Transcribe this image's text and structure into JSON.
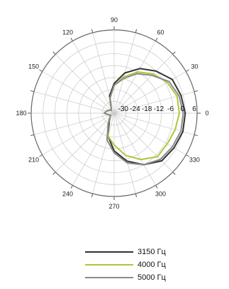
{
  "chart_data": {
    "type": "polar-line",
    "angle_labels": [
      "0",
      "30",
      "60",
      "90",
      "120",
      "150",
      "180",
      "210",
      "240",
      "270",
      "300",
      "330"
    ],
    "angle_values": [
      0,
      30,
      60,
      90,
      120,
      150,
      180,
      210,
      240,
      270,
      300,
      330
    ],
    "radial_labels": [
      "-30",
      "-24",
      "-18",
      "-12",
      "-6",
      "0",
      "6"
    ],
    "radial_values": [
      -30,
      -24,
      -18,
      -12,
      -6,
      0,
      6
    ],
    "rlim": [
      -36,
      6
    ],
    "legend_position": "bottom",
    "series": [
      {
        "name": "3150 Гц",
        "color": "#333333",
        "theta": [
          0,
          15,
          30,
          45,
          60,
          75,
          90,
          105,
          120,
          135,
          150,
          165,
          180,
          195,
          210,
          225,
          240,
          255,
          270,
          285,
          300,
          315,
          330,
          345
        ],
        "r": [
          0,
          -1,
          -2,
          -6,
          -10,
          -15,
          -21,
          -27,
          -33,
          -34,
          -33,
          -32,
          -31,
          -33,
          -34,
          -33,
          -31,
          -24,
          -17,
          -11,
          -6,
          -2,
          -1,
          0
        ]
      },
      {
        "name": "4000 Гц",
        "color": "#a9c93a",
        "theta": [
          0,
          15,
          30,
          45,
          60,
          75,
          90,
          105,
          120,
          135,
          150,
          165,
          180,
          195,
          210,
          225,
          240,
          255,
          270,
          285,
          300,
          315,
          330,
          345
        ],
        "r": [
          -3,
          -3,
          -5,
          -8,
          -12,
          -17,
          -22,
          -28,
          -33,
          -34,
          -33,
          -32,
          -31,
          -33,
          -34,
          -33,
          -30,
          -24,
          -20,
          -14,
          -9,
          -5,
          -5,
          -4
        ]
      },
      {
        "name": "5000 Гц",
        "color": "#8a8a8a",
        "theta": [
          0,
          15,
          30,
          45,
          60,
          75,
          90,
          105,
          120,
          135,
          150,
          165,
          180,
          195,
          210,
          225,
          240,
          255,
          270,
          285,
          300,
          315,
          330,
          345
        ],
        "r": [
          -1,
          -2,
          -4,
          -9,
          -13,
          -18,
          -22,
          -28,
          -33,
          -34,
          -33,
          -32,
          -31,
          -33,
          -34,
          -33,
          -30,
          -22,
          -16,
          -10,
          -6,
          -3,
          -2,
          -1
        ]
      }
    ]
  }
}
